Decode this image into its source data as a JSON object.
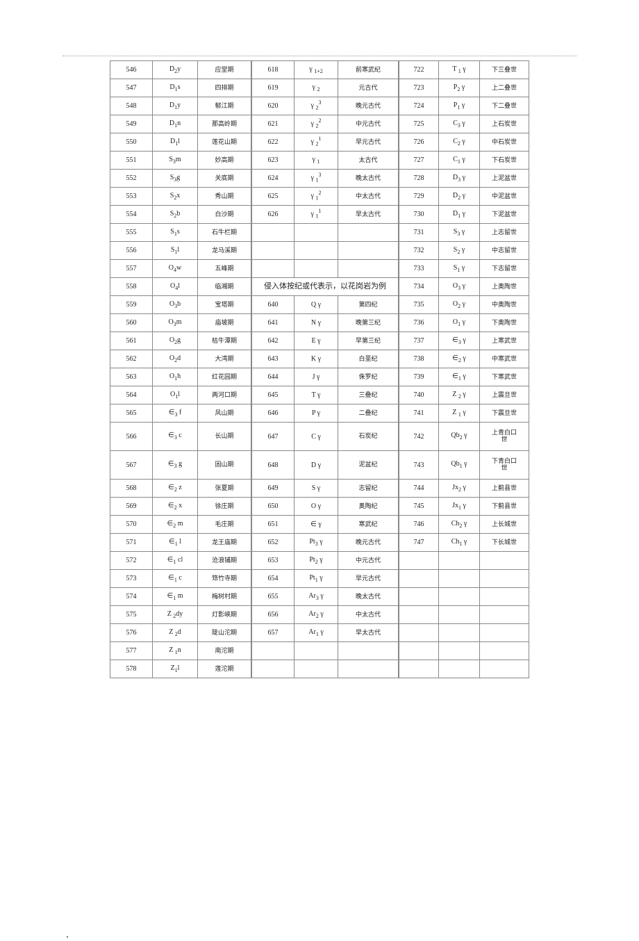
{
  "col1": [
    {
      "n": "546",
      "sym": "D<sub class='sub'>2</sub>y",
      "name": "应堂期"
    },
    {
      "n": "547",
      "sym": "D<sub class='sub'>1</sub>s",
      "name": "四排期"
    },
    {
      "n": "548",
      "sym": "D<sub class='sub'>1</sub>y",
      "name": "郁江期"
    },
    {
      "n": "549",
      "sym": "D<sub class='sub'>1</sub>n",
      "name": "那高岭期"
    },
    {
      "n": "550",
      "sym": "D<sub class='sub'>1</sub>l",
      "name": "莲花山期"
    },
    {
      "n": "551",
      "sym": "S<sub class='sub'>3</sub>m",
      "name": "妙高期"
    },
    {
      "n": "552",
      "sym": "S<sub class='sub'>3</sub>g",
      "name": "关底期"
    },
    {
      "n": "553",
      "sym": "S<sub class='sub'>2</sub>x",
      "name": "秀山期"
    },
    {
      "n": "554",
      "sym": "S<sub class='sub'>2</sub>b",
      "name": "白沙期"
    },
    {
      "n": "555",
      "sym": "S<sub class='sub'>1</sub>s",
      "name": "石牛栏期"
    },
    {
      "n": "556",
      "sym": "S<sub class='sub'>1</sub>l",
      "name": "龙马溪期"
    },
    {
      "n": "557",
      "sym": "O<sub class='sub'>4</sub>w",
      "name": "五峰期"
    },
    {
      "n": "558",
      "sym": "O<sub class='sub'>4</sub>l",
      "name": "临湘期"
    },
    {
      "n": "559",
      "sym": "O<sub class='sub'>3</sub>b",
      "name": "宝塔期"
    },
    {
      "n": "560",
      "sym": "O<sub class='sub'>3</sub>m",
      "name": "庙坡期"
    },
    {
      "n": "561",
      "sym": "O<sub class='sub'>2</sub>g",
      "name": "枯牛潭期"
    },
    {
      "n": "562",
      "sym": "O<sub class='sub'>2</sub>d",
      "name": "大湾期"
    },
    {
      "n": "563",
      "sym": "O<sub class='sub'>1</sub>h",
      "name": "红花园期"
    },
    {
      "n": "564",
      "sym": "O<sub class='sub'>1</sub>l",
      "name": "两河口期"
    },
    {
      "n": "565",
      "sym": "∈<sub class='sub'>3</sub> f",
      "name": "风山期"
    },
    {
      "n": "566",
      "sym": "∈<sub class='sub'>3</sub> c",
      "name": "长山期",
      "tall": true
    },
    {
      "n": "567",
      "sym": "∈<sub class='sub'>3</sub> g",
      "name": "固山期",
      "tall": true
    },
    {
      "n": "568",
      "sym": "∈<sub class='sub'>2</sub> z",
      "name": "张夏期"
    },
    {
      "n": "569",
      "sym": "∈<sub class='sub'>2</sub> x",
      "name": "徐庄期"
    },
    {
      "n": "570",
      "sym": "∈<sub class='sub'>2</sub> m",
      "name": "毛庄期"
    },
    {
      "n": "571",
      "sym": "∈<sub class='sub'>1</sub> l",
      "name": "龙王庙期"
    },
    {
      "n": "572",
      "sym": "∈<sub class='sub'>1</sub> cl",
      "name": "沧浪铺期"
    },
    {
      "n": "573",
      "sym": "∈<sub class='sub'>1</sub> c",
      "name": "筇竹寺期"
    },
    {
      "n": "574",
      "sym": "∈<sub class='sub'>1</sub> m",
      "name": "梅树村期"
    },
    {
      "n": "575",
      "sym": "Z <sub class='sub'>2</sub>dy",
      "name": "灯影峡期"
    },
    {
      "n": "576",
      "sym": "Z <sub class='sub'>2</sub>d",
      "name": "陡山沱期"
    },
    {
      "n": "577",
      "sym": "Z <sub class='sub'>1</sub>n",
      "name": "南沱期"
    },
    {
      "n": "578",
      "sym": "Z<sub class='sub'>1</sub>l",
      "name": "莲沱期"
    }
  ],
  "col2": [
    {
      "n": "618",
      "sym": "γ <sub class='sub'>1+2</sub>",
      "name": "前寒武纪"
    },
    {
      "n": "619",
      "sym": "γ <sub class='sub'>2</sub>",
      "name": "元古代"
    },
    {
      "n": "620",
      "sym": "γ <sub class='sub'>2</sub><sup class='sup'>3</sup>",
      "name": "晚元古代"
    },
    {
      "n": "621",
      "sym": "γ <sub class='sub'>2</sub><sup class='sup'>2</sup>",
      "name": "中元古代"
    },
    {
      "n": "622",
      "sym": "γ <sub class='sub'>2</sub><sup class='sup'>1</sup>",
      "name": "早元古代"
    },
    {
      "n": "623",
      "sym": "γ <sub class='sub'>1</sub>",
      "name": "太古代"
    },
    {
      "n": "624",
      "sym": "γ <sub class='sub'>1</sub><sup class='sup'>3</sup>",
      "name": "晚太古代"
    },
    {
      "n": "625",
      "sym": "γ <sub class='sub'>1</sub><sup class='sup'>2</sup>",
      "name": "中太古代"
    },
    {
      "n": "626",
      "sym": "γ <sub class='sub'>1</sub><sup class='sup'>1</sup>",
      "name": "早太古代"
    },
    {
      "n": "",
      "sym": "",
      "name": ""
    },
    {
      "n": "",
      "sym": "",
      "name": ""
    },
    {
      "n": "",
      "sym": "",
      "name": ""
    },
    {
      "merged": true,
      "text": "侵入体按纪或代表示，以花岗岩为例"
    },
    {
      "n": "640",
      "sym": "Q γ",
      "name": "第四纪"
    },
    {
      "n": "641",
      "sym": "N γ",
      "name": "晚第三纪"
    },
    {
      "n": "642",
      "sym": "E γ",
      "name": "早第三纪"
    },
    {
      "n": "643",
      "sym": "K γ",
      "name": "白垩纪"
    },
    {
      "n": "644",
      "sym": "J γ",
      "name": "侏罗纪"
    },
    {
      "n": "645",
      "sym": "T γ",
      "name": "三叠纪"
    },
    {
      "n": "646",
      "sym": "P γ",
      "name": "二叠纪"
    },
    {
      "n": "647",
      "sym": "C γ",
      "name": "石炭纪",
      "tall": true
    },
    {
      "n": "648",
      "sym": "D γ",
      "name": "泥盆纪",
      "tall": true
    },
    {
      "n": "649",
      "sym": "S γ",
      "name": "志留纪"
    },
    {
      "n": "650",
      "sym": "O γ",
      "name": "奥陶纪"
    },
    {
      "n": "651",
      "sym": "∈ γ",
      "name": "寒武纪"
    },
    {
      "n": "652",
      "sym": "Pt<sub class='sub'>3</sub> γ",
      "name": "晚元古代"
    },
    {
      "n": "653",
      "sym": "Pt<sub class='sub'>2</sub> γ",
      "name": "中元古代"
    },
    {
      "n": "654",
      "sym": "Pt<sub class='sub'>1</sub> γ",
      "name": "早元古代"
    },
    {
      "n": "655",
      "sym": "Ar<sub class='sub'>3</sub>  γ",
      "name": "晚太古代"
    },
    {
      "n": "656",
      "sym": "Ar<sub class='sub'>2</sub>  γ",
      "name": "中太古代"
    },
    {
      "n": "657",
      "sym": "Ar<sub class='sub'>1</sub>  γ",
      "name": "早太古代"
    },
    {
      "n": "",
      "sym": "",
      "name": ""
    },
    {
      "n": "",
      "sym": "",
      "name": ""
    }
  ],
  "col3": [
    {
      "n": "722",
      "sym": "T <sub class='sub'>1</sub> γ",
      "name": "下三叠世"
    },
    {
      "n": "723",
      "sym": "P<sub class='sub'>2</sub> γ",
      "name": "上二叠世"
    },
    {
      "n": "724",
      "sym": "P<sub class='sub'>1</sub> γ",
      "name": "下二叠世"
    },
    {
      "n": "725",
      "sym": "C<sub class='sub'>3</sub> γ",
      "name": "上石炭世"
    },
    {
      "n": "726",
      "sym": "C<sub class='sub'>2</sub> γ",
      "name": "中石炭世"
    },
    {
      "n": "727",
      "sym": "C<sub class='sub'>1</sub> γ",
      "name": "下石炭世"
    },
    {
      "n": "728",
      "sym": "D<sub class='sub'>3</sub> γ",
      "name": "上泥盆世"
    },
    {
      "n": "729",
      "sym": "D<sub class='sub'>2</sub> γ",
      "name": "中泥盆世"
    },
    {
      "n": "730",
      "sym": "D<sub class='sub'>1</sub> γ",
      "name": "下泥盆世"
    },
    {
      "n": "731",
      "sym": "S<sub class='sub'>3</sub> γ",
      "name": "上志留世"
    },
    {
      "n": "732",
      "sym": "S<sub class='sub'>2</sub> γ",
      "name": "中志留世"
    },
    {
      "n": "733",
      "sym": "S<sub class='sub'>1</sub> γ",
      "name": "下志留世"
    },
    {
      "n": "734",
      "sym": "O<sub class='sub'>3</sub> γ",
      "name": "上奥陶世"
    },
    {
      "n": "735",
      "sym": "O<sub class='sub'>2</sub> γ",
      "name": "中奥陶世"
    },
    {
      "n": "736",
      "sym": "O<sub class='sub'>1</sub> γ",
      "name": "下奥陶世"
    },
    {
      "n": "737",
      "sym": "∈<sub class='sub'>3</sub> γ",
      "name": "上寒武世"
    },
    {
      "n": "738",
      "sym": "∈<sub class='sub'>2</sub> γ",
      "name": "中寒武世"
    },
    {
      "n": "739",
      "sym": "∈<sub class='sub'>1</sub> γ",
      "name": "下寒武世"
    },
    {
      "n": "740",
      "sym": "Z <sub class='sub'>2</sub> γ",
      "name": "上震旦世"
    },
    {
      "n": "741",
      "sym": "Z <sub class='sub'>1</sub> γ",
      "name": "下震旦世"
    },
    {
      "n": "742",
      "sym": "Qb<sub class='sub'>2</sub> γ",
      "name": "上青白口<br>世",
      "tall": true
    },
    {
      "n": "743",
      "sym": "Qb<sub class='sub'>1</sub> γ",
      "name": "下青白口<br>世",
      "tall": true
    },
    {
      "n": "744",
      "sym": "Jx<sub class='sub'>2</sub> γ",
      "name": "上蓟县世"
    },
    {
      "n": "745",
      "sym": "Jx<sub class='sub'>1</sub> γ",
      "name": "下蓟县世"
    },
    {
      "n": "746",
      "sym": "Ch<sub class='sub'>2</sub> γ",
      "name": "上长城世"
    },
    {
      "n": "747",
      "sym": "Ch<sub class='sub'>1</sub> γ",
      "name": "下长城世"
    },
    {
      "n": "",
      "sym": "",
      "name": ""
    },
    {
      "n": "",
      "sym": "",
      "name": ""
    },
    {
      "n": "",
      "sym": "",
      "name": ""
    },
    {
      "n": "",
      "sym": "",
      "name": ""
    },
    {
      "n": "",
      "sym": "",
      "name": ""
    },
    {
      "n": "",
      "sym": "",
      "name": ""
    },
    {
      "n": "",
      "sym": "",
      "name": ""
    }
  ],
  "footer": "."
}
